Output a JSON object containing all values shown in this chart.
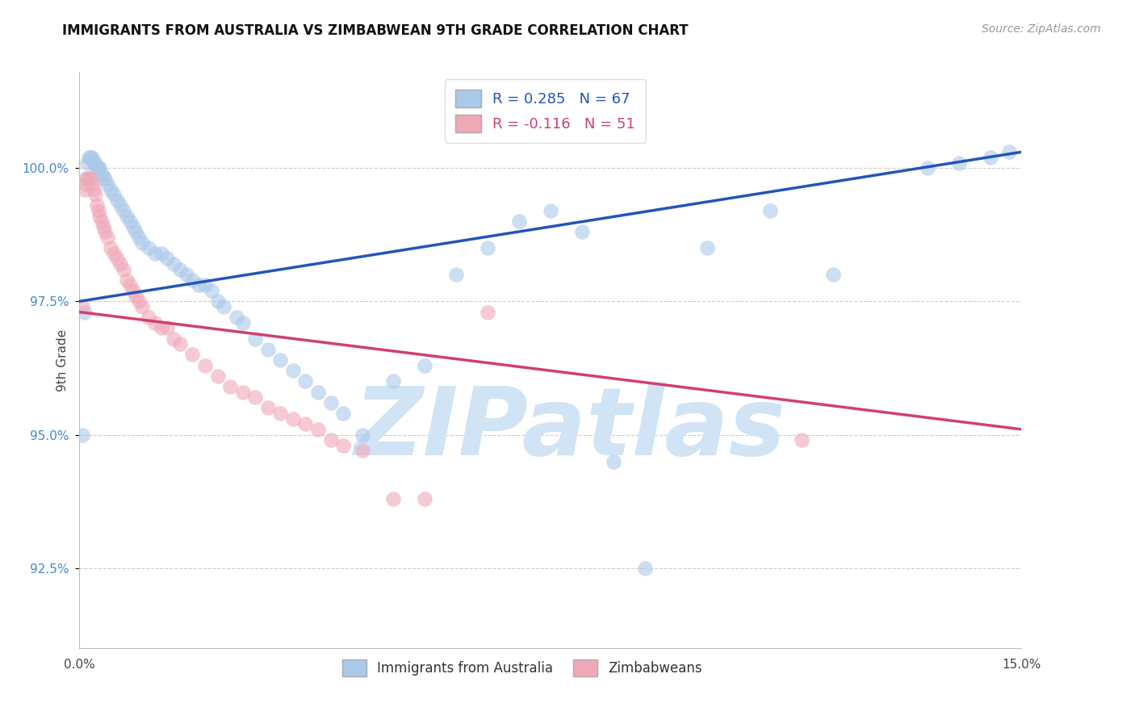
{
  "title": "IMMIGRANTS FROM AUSTRALIA VS ZIMBABWEAN 9TH GRADE CORRELATION CHART",
  "source": "Source: ZipAtlas.com",
  "xlim": [
    0.0,
    15.0
  ],
  "ylim": [
    91.0,
    101.8
  ],
  "ytick_positions": [
    92.5,
    95.0,
    97.5,
    100.0
  ],
  "xtick_positions": [
    0.0,
    15.0
  ],
  "blue_R": 0.285,
  "blue_N": 67,
  "pink_R": -0.116,
  "pink_N": 51,
  "blue_color": "#aac8e8",
  "blue_line_color": "#2255bb",
  "pink_color": "#f0a8b8",
  "pink_line_color": "#d04070",
  "watermark_color": "#d0e4f5",
  "ylabel": "9th Grade",
  "legend_label_blue_short": "Immigrants from Australia",
  "legend_label_pink_short": "Zimbabweans",
  "blue_line_y0": 97.5,
  "blue_line_y1": 100.3,
  "pink_line_y0": 97.3,
  "pink_line_y1": 95.1,
  "blue_x": [
    0.05,
    0.08,
    0.1,
    0.12,
    0.15,
    0.18,
    0.2,
    0.22,
    0.25,
    0.28,
    0.3,
    0.32,
    0.35,
    0.38,
    0.4,
    0.45,
    0.5,
    0.55,
    0.6,
    0.65,
    0.7,
    0.75,
    0.8,
    0.85,
    0.9,
    0.95,
    1.0,
    1.1,
    1.2,
    1.3,
    1.4,
    1.5,
    1.6,
    1.7,
    1.8,
    1.9,
    2.0,
    2.1,
    2.2,
    2.3,
    2.5,
    2.6,
    2.8,
    3.0,
    3.2,
    3.4,
    3.6,
    3.8,
    4.0,
    4.2,
    4.5,
    5.0,
    5.5,
    6.0,
    6.5,
    7.0,
    7.5,
    8.0,
    8.5,
    9.0,
    10.0,
    11.0,
    12.0,
    13.5,
    14.0,
    14.5,
    14.8
  ],
  "blue_y": [
    95.0,
    97.3,
    99.8,
    100.1,
    100.2,
    100.2,
    100.2,
    100.1,
    100.1,
    100.0,
    100.0,
    100.0,
    99.9,
    99.8,
    99.8,
    99.7,
    99.6,
    99.5,
    99.4,
    99.3,
    99.2,
    99.1,
    99.0,
    98.9,
    98.8,
    98.7,
    98.6,
    98.5,
    98.4,
    98.4,
    98.3,
    98.2,
    98.1,
    98.0,
    97.9,
    97.8,
    97.8,
    97.7,
    97.5,
    97.4,
    97.2,
    97.1,
    96.8,
    96.6,
    96.4,
    96.2,
    96.0,
    95.8,
    95.6,
    95.4,
    95.0,
    96.0,
    96.3,
    98.0,
    98.5,
    99.0,
    99.2,
    98.8,
    94.5,
    92.5,
    98.5,
    99.2,
    98.0,
    100.0,
    100.1,
    100.2,
    100.3
  ],
  "pink_x": [
    0.05,
    0.08,
    0.1,
    0.12,
    0.15,
    0.18,
    0.2,
    0.22,
    0.25,
    0.28,
    0.3,
    0.32,
    0.35,
    0.38,
    0.4,
    0.45,
    0.5,
    0.55,
    0.6,
    0.65,
    0.7,
    0.75,
    0.8,
    0.85,
    0.9,
    0.95,
    1.0,
    1.1,
    1.2,
    1.3,
    1.4,
    1.5,
    1.6,
    1.8,
    2.0,
    2.2,
    2.4,
    2.6,
    2.8,
    3.0,
    3.2,
    3.4,
    3.6,
    3.8,
    4.0,
    4.2,
    4.5,
    5.0,
    5.5,
    6.5,
    11.5
  ],
  "pink_y": [
    97.4,
    99.6,
    99.7,
    99.8,
    99.8,
    99.8,
    99.7,
    99.6,
    99.5,
    99.3,
    99.2,
    99.1,
    99.0,
    98.9,
    98.8,
    98.7,
    98.5,
    98.4,
    98.3,
    98.2,
    98.1,
    97.9,
    97.8,
    97.7,
    97.6,
    97.5,
    97.4,
    97.2,
    97.1,
    97.0,
    97.0,
    96.8,
    96.7,
    96.5,
    96.3,
    96.1,
    95.9,
    95.8,
    95.7,
    95.5,
    95.4,
    95.3,
    95.2,
    95.1,
    94.9,
    94.8,
    94.7,
    93.8,
    93.8,
    97.3,
    94.9
  ],
  "title_fontsize": 12,
  "source_fontsize": 10,
  "tick_fontsize": 11,
  "legend_fontsize": 13,
  "marker_size": 180
}
